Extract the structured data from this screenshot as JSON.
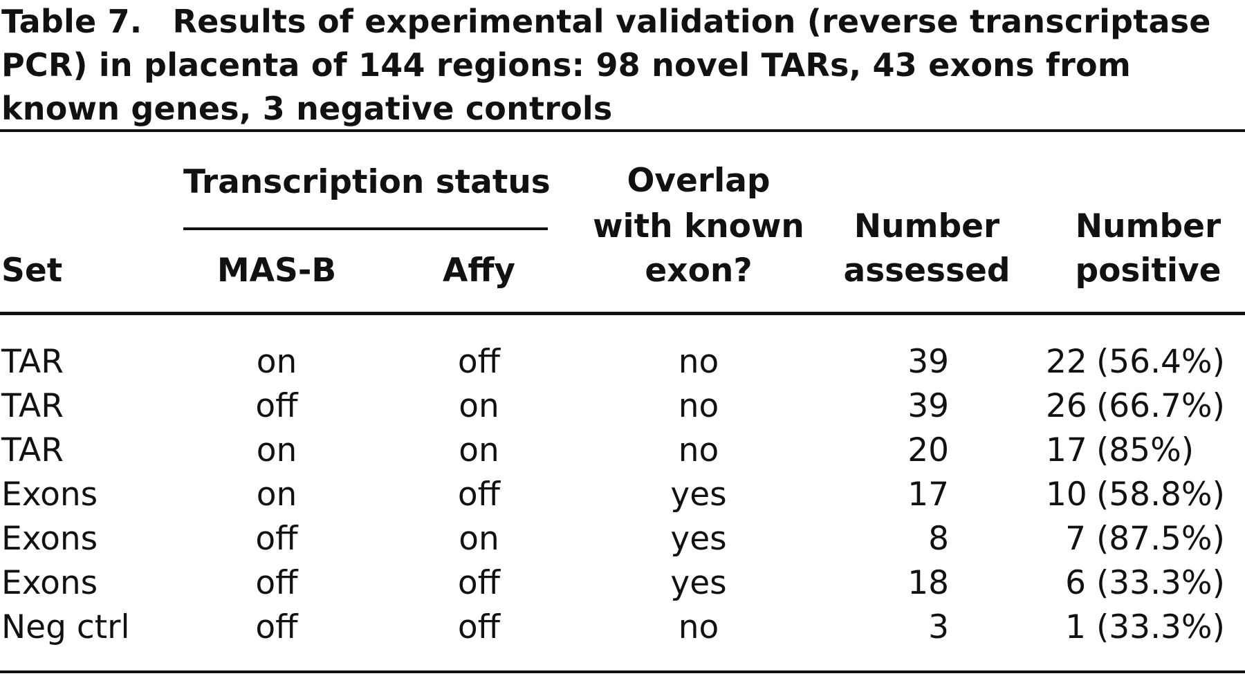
{
  "caption": {
    "label": "Table 7.",
    "text": "Results of experimental validation (reverse transcriptase PCR) in placenta of 144 regions: 98 novel TARs, 43 exons from known genes, 3 negative controls"
  },
  "headers": {
    "set": "Set",
    "transcription_status": "Transcription status",
    "mas_b": "MAS-B",
    "affy": "Affy",
    "overlap_l1": "Overlap",
    "overlap_l2": "with known",
    "overlap_l3": "exon?",
    "assessed_l1": "Number",
    "assessed_l2": "assessed",
    "positive_l1": "Number",
    "positive_l2": "positive"
  },
  "rows": [
    {
      "set": "TAR",
      "mas_b": "on",
      "affy": "off",
      "overlap": "no",
      "assessed": "39",
      "positive": "22 (56.4%)"
    },
    {
      "set": "TAR",
      "mas_b": "off",
      "affy": "on",
      "overlap": "no",
      "assessed": "39",
      "positive": "26 (66.7%)"
    },
    {
      "set": "TAR",
      "mas_b": "on",
      "affy": "on",
      "overlap": "no",
      "assessed": "20",
      "positive": "17 (85%)"
    },
    {
      "set": "Exons",
      "mas_b": "on",
      "affy": "off",
      "overlap": "yes",
      "assessed": "17",
      "positive": "10 (58.8%)"
    },
    {
      "set": "Exons",
      "mas_b": "off",
      "affy": "on",
      "overlap": "yes",
      "assessed": "8",
      "positive": "7 (87.5%)"
    },
    {
      "set": "Exons",
      "mas_b": "off",
      "affy": "off",
      "overlap": "yes",
      "assessed": "18",
      "positive": "6 (33.3%)"
    },
    {
      "set": "Neg ctrl",
      "mas_b": "off",
      "affy": "off",
      "overlap": "no",
      "assessed": "3",
      "positive": "1 (33.3%)"
    }
  ]
}
